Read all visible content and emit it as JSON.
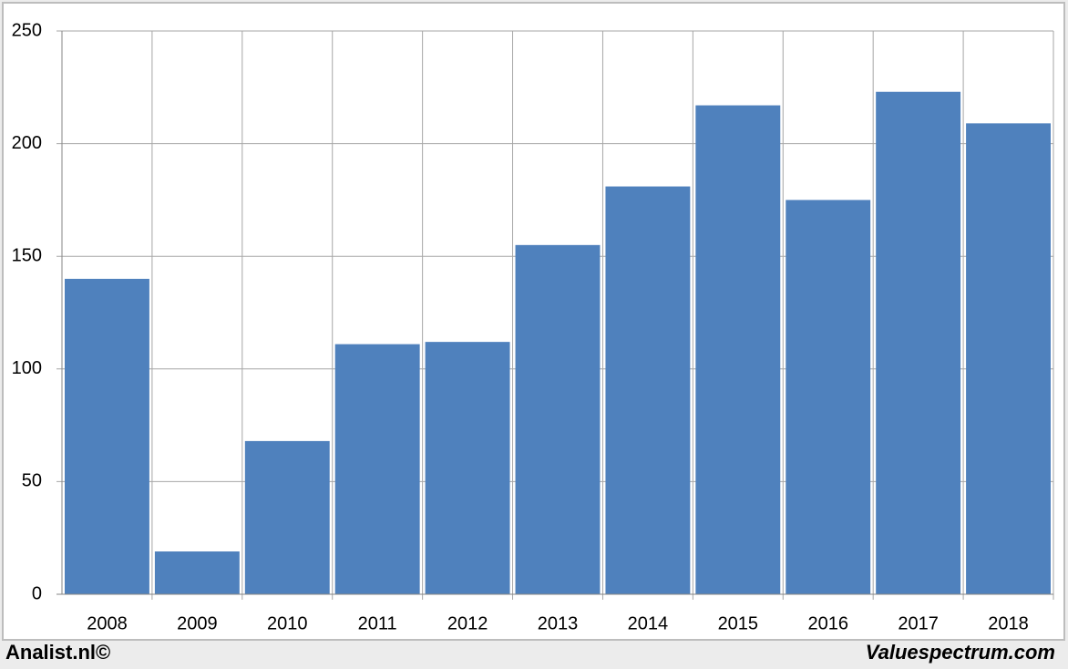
{
  "chart_data": {
    "type": "bar",
    "categories": [
      "2008",
      "2009",
      "2010",
      "2011",
      "2012",
      "2013",
      "2014",
      "2015",
      "2016",
      "2017",
      "2018"
    ],
    "values": [
      140,
      19,
      68,
      111,
      112,
      155,
      181,
      217,
      175,
      223,
      209
    ],
    "color": "#4f81bd",
    "ylim": [
      0,
      250
    ],
    "yticks": [
      0,
      50,
      100,
      150,
      200,
      250
    ],
    "grid": true,
    "footer_left": "Analist.nl©",
    "footer_right": "Valuespectrum.com"
  }
}
